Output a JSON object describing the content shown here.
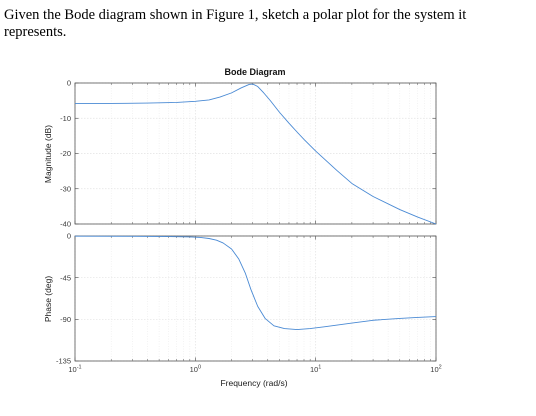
{
  "question": "Given the Bode diagram shown in Figure 1, sketch a polar plot for the system it represents.",
  "chart_data": {
    "type": "line",
    "title": "Bode Diagram",
    "xlabel": "Frequency  (rad/s)",
    "xscale": "log",
    "xlim": [
      0.1,
      100
    ],
    "xticks": [
      {
        "value": 0.1,
        "base": "10",
        "exp": "-1"
      },
      {
        "value": 1,
        "base": "10",
        "exp": "0"
      },
      {
        "value": 10,
        "base": "10",
        "exp": "1"
      },
      {
        "value": 100,
        "base": "10",
        "exp": "2"
      }
    ],
    "grid": true,
    "line_color": "#4a8ad4",
    "panels": [
      {
        "name": "magnitude",
        "ylabel": "Magnitude (dB)",
        "ylim": [
          -40,
          0
        ],
        "yticks": [
          "0",
          "-10",
          "-20",
          "-30",
          "-40"
        ],
        "ytick_values": [
          0,
          -10,
          -20,
          -30,
          -40
        ],
        "x": [
          0.1,
          0.2,
          0.4,
          0.7,
          1.0,
          1.3,
          1.6,
          2.0,
          2.4,
          2.8,
          3.0,
          3.3,
          3.7,
          4.2,
          5.0,
          6.0,
          7.0,
          8.0,
          10.0,
          15.0,
          20.0,
          30.0,
          50.0,
          70.0,
          100.0
        ],
        "y": [
          -5.8,
          -5.8,
          -5.7,
          -5.5,
          -5.2,
          -4.8,
          -4.0,
          -2.8,
          -1.4,
          -0.4,
          -0.3,
          -1.0,
          -2.8,
          -5.0,
          -8.3,
          -11.4,
          -13.9,
          -16.0,
          -19.3,
          -24.8,
          -28.5,
          -32.2,
          -35.9,
          -38.0,
          -40.0
        ]
      },
      {
        "name": "phase",
        "ylabel": "Phase (deg)",
        "ylim": [
          -135,
          0
        ],
        "yticks": [
          "0",
          "-45",
          "-90",
          "-135"
        ],
        "ytick_values": [
          0,
          -45,
          -90,
          -135
        ],
        "x": [
          0.1,
          0.3,
          0.6,
          0.9,
          1.1,
          1.3,
          1.5,
          1.7,
          2.0,
          2.3,
          2.6,
          2.9,
          3.3,
          3.8,
          4.5,
          5.5,
          7.0,
          9.0,
          12.0,
          20.0,
          30.0,
          50.0,
          70.0,
          100.0
        ],
        "y": [
          -0.2,
          -0.3,
          -0.6,
          -1.0,
          -1.6,
          -2.7,
          -4.5,
          -7.5,
          -14.0,
          -25.0,
          -40.0,
          -58.0,
          -76.0,
          -89.0,
          -97.0,
          -100.0,
          -101.0,
          -100.0,
          -98.0,
          -94.0,
          -91.0,
          -89.0,
          -88.0,
          -87.0
        ]
      }
    ]
  }
}
